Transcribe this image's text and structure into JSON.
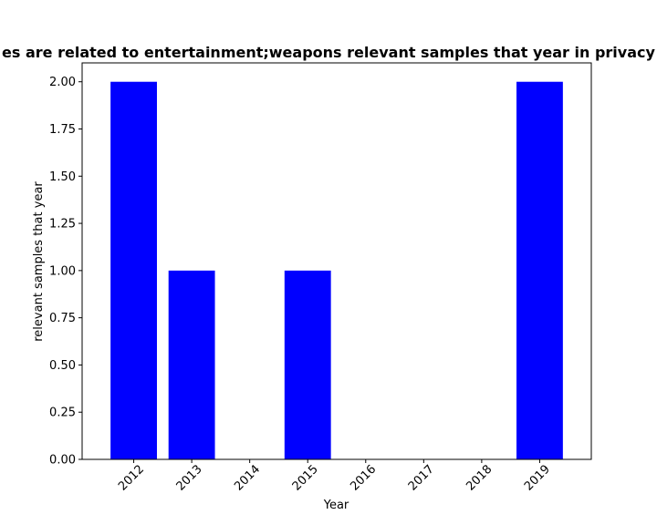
{
  "chart_data": {
    "type": "bar",
    "title": "es are related to entertainment;weapons relevant samples that year in privacy",
    "xlabel": "Year",
    "ylabel": "relevant samples that year",
    "categories": [
      "2012",
      "2013",
      "2014",
      "2015",
      "2016",
      "2017",
      "2018",
      "2019"
    ],
    "values": [
      2,
      1,
      0,
      1,
      0,
      0,
      0,
      2
    ],
    "ylim": [
      0,
      2.1
    ],
    "yticks": [
      "0.00",
      "0.25",
      "0.50",
      "0.75",
      "1.00",
      "1.25",
      "1.50",
      "1.75",
      "2.00"
    ],
    "bar_color": "#0000ff",
    "grid": false,
    "xtick_rotation_deg": 45
  }
}
